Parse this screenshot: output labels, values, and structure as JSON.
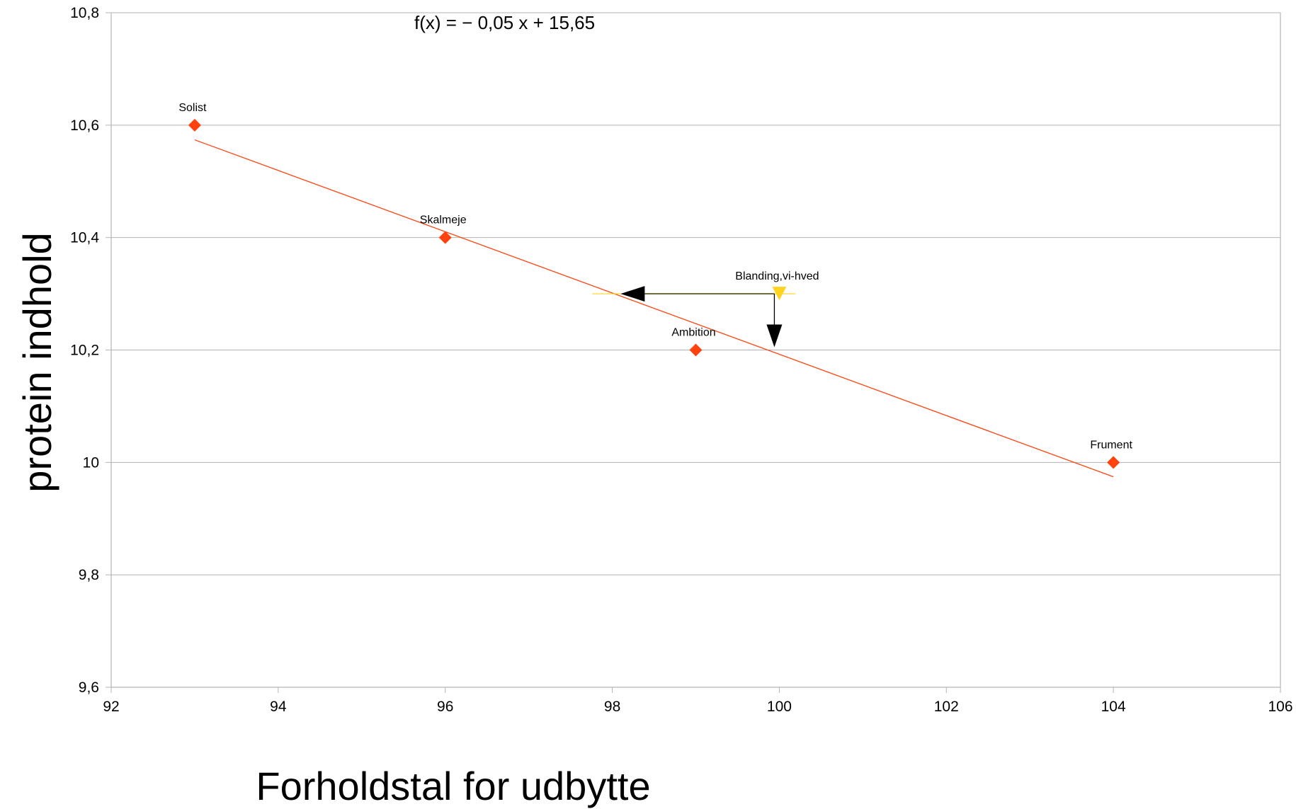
{
  "chart_data": {
    "type": "scatter",
    "title": "",
    "xlabel": "Forholdstal for udbytte",
    "ylabel": "protein indhold",
    "xlim": [
      92,
      106
    ],
    "ylim": [
      9.6,
      10.8
    ],
    "xticks": [
      "92",
      "94",
      "96",
      "98",
      "100",
      "102",
      "104",
      "106"
    ],
    "yticks": [
      "9,6",
      "9,8",
      "10",
      "10,2",
      "10,4",
      "10,6",
      "10,8"
    ],
    "grid": "horizontal",
    "points": [
      {
        "label": "Solist",
        "x": 93,
        "y": 10.6,
        "color": "#ff420e",
        "marker": "diamond"
      },
      {
        "label": "Skalmeje",
        "x": 96,
        "y": 10.4,
        "color": "#ff420e",
        "marker": "diamond"
      },
      {
        "label": "Ambition",
        "x": 99,
        "y": 10.2,
        "color": "#ff420e",
        "marker": "diamond"
      },
      {
        "label": "Frument",
        "x": 104,
        "y": 10.0,
        "color": "#ff420e",
        "marker": "diamond"
      },
      {
        "label": "Blanding,vi-hved",
        "x": 100,
        "y": 10.3,
        "color": "#ffd320",
        "marker": "triangle-down"
      }
    ],
    "trendline": {
      "equation": "f(x) = − 0,05 x + 15,65",
      "slope": -0.0545,
      "intercept": 15.6424,
      "x_range": [
        93,
        104
      ],
      "color": "#ff420e"
    },
    "arrows": [
      {
        "from": [
          100,
          10.3
        ],
        "to": [
          98.1,
          10.3
        ],
        "direction": "left"
      },
      {
        "from": [
          100,
          10.3
        ],
        "to": [
          100,
          10.2
        ],
        "direction": "down"
      }
    ]
  }
}
